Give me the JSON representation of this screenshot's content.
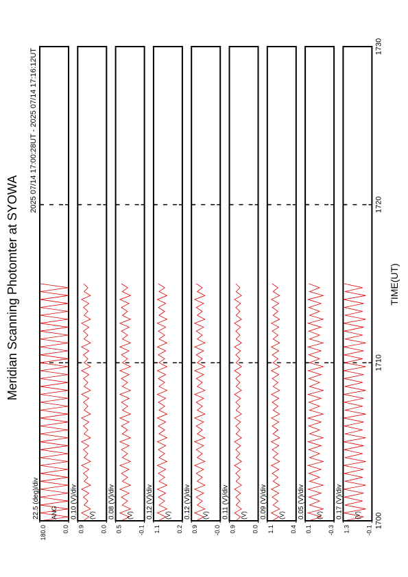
{
  "chart_data": {
    "type": "line",
    "title": "Meridian Scanning Photomter at SYOWA",
    "subtitle": "2025 07/14 17:00:28UT - 2025 07/14 17:16:12UT",
    "xlabel": "TIME(UT)",
    "xlim": [
      1700,
      1730
    ],
    "xticks": [
      1700,
      1710,
      1720,
      1730
    ],
    "x": [
      1700,
      1700.25,
      1700.5,
      1700.75,
      1701,
      1701.25,
      1701.5,
      1701.75,
      1702,
      1702.25,
      1702.5,
      1702.75,
      1703,
      1703.25,
      1703.5,
      1703.75,
      1704,
      1704.25,
      1704.5,
      1704.75,
      1705,
      1705.25,
      1705.5,
      1705.75,
      1706,
      1706.25,
      1706.5,
      1706.75,
      1707,
      1707.25,
      1707.5,
      1707.75,
      1708,
      1708.25,
      1708.5,
      1708.75,
      1709,
      1709.25,
      1709.5,
      1709.75,
      1710,
      1710.25,
      1710.5,
      1710.75,
      1711,
      1711.25,
      1711.5,
      1711.75,
      1712,
      1712.25,
      1712.5,
      1712.75,
      1713,
      1713.25,
      1713.5,
      1713.75,
      1714,
      1714.25,
      1714.5,
      1714.75,
      1715
    ],
    "panels": [
      {
        "name": "ANG",
        "scale_label": "22.5 (deg)/div",
        "color": "#e00000",
        "ylim": [
          0,
          180
        ],
        "yticks": [
          {
            "value": 180,
            "label": "180.0"
          },
          {
            "value": 0,
            "label": "0.0"
          }
        ],
        "values": [
          178,
          2,
          178,
          2,
          178,
          2,
          178,
          2,
          178,
          2,
          178,
          2,
          178,
          2,
          178,
          2,
          178,
          2,
          178,
          2,
          178,
          2,
          178,
          2,
          178,
          2,
          178,
          2,
          178,
          2,
          178,
          2,
          178,
          2,
          178,
          2,
          178,
          2,
          178,
          2,
          178,
          2,
          178,
          2,
          178,
          2,
          178,
          2,
          178,
          2,
          178,
          2,
          178,
          2,
          178,
          2,
          178,
          2,
          178,
          2,
          178
        ]
      },
      {
        "name": "(V)",
        "scale_label": "0.10 (V)/div",
        "color": "#e00000",
        "ylim": [
          0,
          0.9
        ],
        "yticks": [
          0.9,
          {
            "value": 0,
            "label": "0.0"
          }
        ],
        "values": [
          0.72,
          0.55,
          0.78,
          0.5,
          0.7,
          0.58,
          0.72,
          0.55,
          0.78,
          0.5,
          0.7,
          0.58,
          0.72,
          0.55,
          0.78,
          0.5,
          0.7,
          0.58,
          0.72,
          0.55,
          0.78,
          0.5,
          0.7,
          0.58,
          0.72,
          0.55,
          0.78,
          0.5,
          0.7,
          0.58,
          0.72,
          0.55,
          0.78,
          0.5,
          0.7,
          0.58,
          0.72,
          0.55,
          0.78,
          0.5,
          0.7,
          0.58,
          0.72,
          0.55,
          0.78,
          0.5,
          0.7,
          0.58,
          0.72,
          0.55,
          0.78,
          0.5,
          0.7,
          0.58,
          0.72,
          0.55,
          0.78,
          0.5,
          0.7,
          0.58,
          0.72
        ]
      },
      {
        "name": "(V)",
        "scale_label": "0.08 (V)/div",
        "color": "#e00000",
        "ylim": [
          -0.1,
          0.5
        ],
        "yticks": [
          0.5,
          -0.1
        ],
        "values": [
          0.38,
          0.22,
          0.41,
          0.19,
          0.36,
          0.25,
          0.38,
          0.22,
          0.41,
          0.19,
          0.36,
          0.25,
          0.38,
          0.22,
          0.41,
          0.19,
          0.36,
          0.25,
          0.38,
          0.22,
          0.41,
          0.19,
          0.36,
          0.25,
          0.38,
          0.22,
          0.41,
          0.19,
          0.36,
          0.25,
          0.38,
          0.22,
          0.41,
          0.19,
          0.36,
          0.25,
          0.38,
          0.22,
          0.41,
          0.19,
          0.36,
          0.25,
          0.38,
          0.22,
          0.41,
          0.19,
          0.36,
          0.25,
          0.38,
          0.22,
          0.41,
          0.19,
          0.36,
          0.25,
          0.38,
          0.22,
          0.41,
          0.19,
          0.36,
          0.25,
          0.38
        ]
      },
      {
        "name": "(V)",
        "scale_label": "0.12 (V)/div",
        "color": "#e00000",
        "ylim": [
          0.2,
          1.1
        ],
        "yticks": [
          1.1,
          0.2
        ],
        "values": [
          0.95,
          0.72,
          0.98,
          0.68,
          0.93,
          0.75,
          0.95,
          0.72,
          0.98,
          0.68,
          0.93,
          0.75,
          0.95,
          0.72,
          0.98,
          0.68,
          0.93,
          0.75,
          0.95,
          0.72,
          0.98,
          0.68,
          0.93,
          0.75,
          0.95,
          0.72,
          0.98,
          0.68,
          0.93,
          0.75,
          0.95,
          0.72,
          0.98,
          0.68,
          0.93,
          0.75,
          0.95,
          0.72,
          0.98,
          0.68,
          0.93,
          0.75,
          0.95,
          0.72,
          0.98,
          0.68,
          0.93,
          0.75,
          0.95,
          0.72,
          0.98,
          0.68,
          0.93,
          0.75,
          0.95,
          0.72,
          0.98,
          0.68,
          0.93,
          0.75,
          0.95
        ]
      },
      {
        "name": "(V)",
        "scale_label": "0.12 (V)/div",
        "color": "#e00000",
        "ylim": [
          0,
          0.9
        ],
        "yticks": [
          0.9,
          {
            "value": 0,
            "label": "-0.0"
          }
        ],
        "values": [
          0.75,
          0.52,
          0.8,
          0.48,
          0.72,
          0.56,
          0.75,
          0.52,
          0.8,
          0.48,
          0.72,
          0.56,
          0.75,
          0.52,
          0.8,
          0.48,
          0.72,
          0.56,
          0.75,
          0.52,
          0.8,
          0.48,
          0.72,
          0.56,
          0.75,
          0.52,
          0.8,
          0.48,
          0.72,
          0.56,
          0.75,
          0.52,
          0.8,
          0.48,
          0.72,
          0.56,
          0.75,
          0.52,
          0.8,
          0.48,
          0.72,
          0.56,
          0.75,
          0.52,
          0.8,
          0.48,
          0.72,
          0.56,
          0.75,
          0.52,
          0.8,
          0.48,
          0.72,
          0.56,
          0.75,
          0.52,
          0.8,
          0.48,
          0.72,
          0.56,
          0.75
        ]
      },
      {
        "name": "(V)",
        "scale_label": "0.11 (V)/div",
        "color": "#e00000",
        "ylim": [
          0,
          0.9
        ],
        "yticks": [
          0.9,
          {
            "value": 0,
            "label": "0.0"
          }
        ],
        "values": [
          0.7,
          0.55,
          0.74,
          0.52,
          0.69,
          0.57,
          0.7,
          0.55,
          0.74,
          0.52,
          0.69,
          0.57,
          0.7,
          0.55,
          0.74,
          0.52,
          0.69,
          0.57,
          0.7,
          0.55,
          0.74,
          0.52,
          0.69,
          0.57,
          0.7,
          0.55,
          0.74,
          0.52,
          0.69,
          0.57,
          0.7,
          0.55,
          0.74,
          0.52,
          0.69,
          0.57,
          0.7,
          0.55,
          0.74,
          0.52,
          0.69,
          0.57,
          0.7,
          0.55,
          0.74,
          0.52,
          0.69,
          0.57,
          0.7,
          0.55,
          0.74,
          0.52,
          0.69,
          0.57,
          0.7,
          0.55,
          0.74,
          0.52,
          0.69,
          0.57,
          0.7
        ]
      },
      {
        "name": "(V)",
        "scale_label": "0.09 (V)/div",
        "color": "#e00000",
        "ylim": [
          0.4,
          1.1
        ],
        "yticks": [
          1.1,
          0.4
        ],
        "values": [
          0.98,
          0.82,
          1.0,
          0.8,
          0.96,
          0.84,
          0.98,
          0.82,
          1.0,
          0.8,
          0.96,
          0.84,
          0.98,
          0.82,
          1.0,
          0.8,
          0.96,
          0.84,
          0.98,
          0.82,
          1.0,
          0.8,
          0.96,
          0.84,
          0.98,
          0.82,
          1.0,
          0.8,
          0.96,
          0.84,
          0.98,
          0.82,
          1.0,
          0.8,
          0.96,
          0.84,
          0.98,
          0.82,
          1.0,
          0.8,
          0.96,
          0.84,
          0.98,
          0.82,
          1.0,
          0.8,
          0.96,
          0.84,
          0.98,
          0.82,
          1.0,
          0.8,
          0.96,
          0.84,
          0.98,
          0.82,
          1.0,
          0.8,
          0.96,
          0.84,
          0.98
        ]
      },
      {
        "name": "(V)",
        "scale_label": "0.05 (V)/div",
        "color": "#e00000",
        "ylim": [
          -0.3,
          0.1
        ],
        "yticks": [
          0.1,
          -0.3
        ],
        "values": [
          0.05,
          -0.12,
          0.06,
          -0.15,
          0.04,
          -0.1,
          0.05,
          -0.12,
          0.06,
          -0.15,
          0.04,
          -0.1,
          0.05,
          -0.12,
          0.06,
          -0.15,
          0.04,
          -0.1,
          0.05,
          -0.12,
          0.06,
          -0.15,
          0.04,
          -0.1,
          0.05,
          -0.12,
          0.06,
          -0.15,
          0.04,
          -0.1,
          0.05,
          -0.12,
          0.06,
          -0.15,
          0.04,
          -0.1,
          0.05,
          -0.12,
          0.06,
          -0.15,
          0.04,
          -0.1,
          0.05,
          -0.12,
          0.06,
          -0.15,
          0.04,
          -0.1,
          0.05,
          -0.12,
          0.06,
          -0.15,
          0.04,
          -0.1,
          0.05,
          -0.12,
          0.06,
          -0.15,
          0.04,
          -0.1,
          0.05
        ]
      },
      {
        "name": "(V)",
        "scale_label": "0.17 (V)/div",
        "color": "#e00000",
        "ylim": [
          -0.1,
          1.3
        ],
        "yticks": [
          1.3,
          -0.1
        ],
        "values": [
          1.25,
          0.3,
          1.28,
          0.2,
          1.22,
          0.35,
          1.25,
          0.3,
          1.28,
          0.2,
          1.22,
          0.35,
          1.25,
          0.3,
          1.28,
          0.2,
          1.22,
          0.35,
          1.25,
          0.3,
          1.28,
          0.2,
          1.22,
          0.35,
          1.25,
          0.3,
          1.28,
          0.2,
          1.22,
          0.35,
          1.25,
          0.3,
          1.28,
          0.2,
          1.22,
          0.35,
          1.25,
          0.3,
          1.28,
          0.2,
          1.22,
          0.35,
          1.25,
          0.3,
          1.28,
          0.2,
          1.22,
          0.35,
          1.25,
          0.3,
          1.28,
          0.2,
          1.22,
          0.35,
          1.25,
          0.3,
          1.28,
          0.2,
          1.22,
          0.35,
          1.25
        ]
      }
    ]
  }
}
